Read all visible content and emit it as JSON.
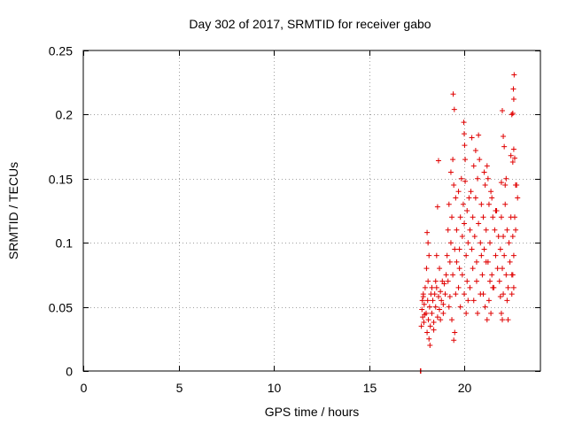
{
  "chart_data": {
    "type": "scatter",
    "title": "Day 302 of 2017, SRMTID for receiver gabo",
    "xlabel": "GPS time / hours",
    "ylabel": "SRMTID / TECUs",
    "xlim": [
      0,
      24
    ],
    "ylim": [
      0,
      0.25
    ],
    "xticks": [
      0,
      5,
      10,
      15,
      20
    ],
    "xtick_labels": [
      "0",
      "5",
      "10",
      "15",
      "20"
    ],
    "yticks": [
      0,
      0.05,
      0.1,
      0.15,
      0.2,
      0.25
    ],
    "ytick_labels": [
      "0",
      "0.05",
      "0.1",
      "0.15",
      "0.2",
      "0.25"
    ],
    "grid": true,
    "legend": "none",
    "marker": "plus",
    "color": "#e00000",
    "series": [
      {
        "name": "SRMTID",
        "points": [
          [
            17.7,
            0.0
          ],
          [
            17.72,
            0.0
          ],
          [
            17.75,
            0.035
          ],
          [
            17.78,
            0.048
          ],
          [
            17.8,
            0.055
          ],
          [
            17.82,
            0.042
          ],
          [
            17.85,
            0.06
          ],
          [
            17.88,
            0.038
          ],
          [
            17.9,
            0.052
          ],
          [
            17.95,
            0.065
          ],
          [
            18.0,
            0.045
          ],
          [
            18.05,
            0.03
          ],
          [
            18.08,
            0.055
          ],
          [
            18.1,
            0.07
          ],
          [
            18.12,
            0.04
          ],
          [
            18.15,
            0.025
          ],
          [
            18.18,
            0.05
          ],
          [
            18.2,
            0.02
          ],
          [
            18.22,
            0.035
          ],
          [
            18.25,
            0.06
          ],
          [
            18.05,
            0.108
          ],
          [
            18.1,
            0.1
          ],
          [
            18.02,
            0.08
          ],
          [
            18.15,
            0.09
          ],
          [
            17.85,
            0.058
          ],
          [
            17.92,
            0.044
          ],
          [
            18.3,
            0.045
          ],
          [
            18.35,
            0.055
          ],
          [
            18.4,
            0.038
          ],
          [
            18.45,
            0.06
          ],
          [
            18.5,
            0.05
          ],
          [
            18.55,
            0.065
          ],
          [
            18.6,
            0.042
          ],
          [
            18.65,
            0.058
          ],
          [
            18.7,
            0.048
          ],
          [
            18.75,
            0.062
          ],
          [
            18.8,
            0.055
          ],
          [
            18.85,
            0.07
          ],
          [
            18.9,
            0.052
          ],
          [
            18.95,
            0.068
          ],
          [
            19.0,
            0.06
          ],
          [
            18.5,
            0.07
          ],
          [
            18.6,
            0.128
          ],
          [
            18.65,
            0.164
          ],
          [
            18.55,
            0.09
          ],
          [
            18.7,
            0.08
          ],
          [
            18.4,
            0.032
          ],
          [
            18.75,
            0.04
          ],
          [
            18.9,
            0.045
          ],
          [
            18.3,
            0.065
          ],
          [
            19.05,
            0.075
          ],
          [
            19.1,
            0.09
          ],
          [
            19.15,
            0.11
          ],
          [
            19.2,
            0.13
          ],
          [
            19.25,
            0.085
          ],
          [
            19.3,
            0.1
          ],
          [
            19.35,
            0.12
          ],
          [
            19.4,
            0.075
          ],
          [
            19.45,
            0.145
          ],
          [
            19.5,
            0.095
          ],
          [
            19.55,
            0.06
          ],
          [
            19.6,
            0.11
          ],
          [
            19.3,
            0.155
          ],
          [
            19.4,
            0.165
          ],
          [
            19.42,
            0.216
          ],
          [
            19.48,
            0.204
          ],
          [
            19.2,
            0.05
          ],
          [
            19.35,
            0.04
          ],
          [
            19.45,
            0.024
          ],
          [
            19.5,
            0.03
          ],
          [
            19.15,
            0.07
          ],
          [
            19.25,
            0.058
          ],
          [
            19.55,
            0.135
          ],
          [
            19.6,
            0.085
          ],
          [
            19.7,
            0.14
          ],
          [
            19.75,
            0.095
          ],
          [
            19.8,
            0.12
          ],
          [
            19.85,
            0.15
          ],
          [
            19.9,
            0.105
          ],
          [
            19.95,
            0.13
          ],
          [
            20.0,
            0.115
          ],
          [
            20.05,
            0.148
          ],
          [
            20.1,
            0.09
          ],
          [
            20.15,
            0.125
          ],
          [
            20.2,
            0.1
          ],
          [
            20.25,
            0.135
          ],
          [
            19.98,
            0.194
          ],
          [
            20.0,
            0.185
          ],
          [
            20.02,
            0.176
          ],
          [
            20.05,
            0.165
          ],
          [
            19.7,
            0.065
          ],
          [
            19.8,
            0.05
          ],
          [
            19.9,
            0.075
          ],
          [
            20.0,
            0.06
          ],
          [
            20.1,
            0.045
          ],
          [
            20.15,
            0.07
          ],
          [
            19.75,
            0.08
          ],
          [
            20.2,
            0.055
          ],
          [
            20.3,
            0.11
          ],
          [
            20.35,
            0.14
          ],
          [
            20.4,
            0.095
          ],
          [
            20.45,
            0.12
          ],
          [
            20.5,
            0.16
          ],
          [
            20.55,
            0.105
          ],
          [
            20.6,
            0.135
          ],
          [
            20.65,
            0.085
          ],
          [
            20.7,
            0.15
          ],
          [
            20.75,
            0.115
          ],
          [
            20.8,
            0.165
          ],
          [
            20.85,
            0.1
          ],
          [
            20.9,
            0.13
          ],
          [
            20.95,
            0.075
          ],
          [
            20.4,
            0.182
          ],
          [
            20.6,
            0.172
          ],
          [
            20.75,
            0.184
          ],
          [
            20.3,
            0.065
          ],
          [
            20.5,
            0.055
          ],
          [
            20.7,
            0.045
          ],
          [
            20.85,
            0.06
          ],
          [
            20.45,
            0.08
          ],
          [
            20.65,
            0.07
          ],
          [
            20.9,
            0.09
          ],
          [
            21.0,
            0.12
          ],
          [
            21.05,
            0.095
          ],
          [
            21.1,
            0.145
          ],
          [
            21.15,
            0.11
          ],
          [
            21.2,
            0.16
          ],
          [
            21.25,
            0.085
          ],
          [
            21.3,
            0.13
          ],
          [
            21.35,
            0.1
          ],
          [
            21.4,
            0.14
          ],
          [
            21.45,
            0.075
          ],
          [
            21.5,
            0.12
          ],
          [
            21.55,
            0.065
          ],
          [
            21.6,
            0.11
          ],
          [
            21.65,
            0.09
          ],
          [
            21.7,
            0.125
          ],
          [
            21.75,
            0.08
          ],
          [
            21.8,
            0.105
          ],
          [
            21.85,
            0.07
          ],
          [
            21.0,
            0.06
          ],
          [
            21.1,
            0.05
          ],
          [
            21.2,
            0.04
          ],
          [
            21.3,
            0.055
          ],
          [
            21.4,
            0.045
          ],
          [
            21.5,
            0.065
          ],
          [
            21.05,
            0.155
          ],
          [
            21.25,
            0.15
          ],
          [
            21.45,
            0.135
          ],
          [
            21.65,
            0.125
          ],
          [
            21.15,
            0.085
          ],
          [
            21.35,
            0.07
          ],
          [
            21.9,
            0.095
          ],
          [
            21.95,
            0.12
          ],
          [
            22.0,
            0.08
          ],
          [
            22.05,
            0.105
          ],
          [
            22.1,
            0.09
          ],
          [
            22.15,
            0.13
          ],
          [
            22.2,
            0.075
          ],
          [
            22.25,
            0.11
          ],
          [
            22.3,
            0.065
          ],
          [
            22.35,
            0.1
          ],
          [
            22.4,
            0.085
          ],
          [
            22.45,
            0.12
          ],
          [
            21.9,
            0.058
          ],
          [
            21.95,
            0.045
          ],
          [
            22.0,
            0.04
          ],
          [
            22.05,
            0.06
          ],
          [
            21.95,
            0.147
          ],
          [
            22.05,
            0.183
          ],
          [
            22.0,
            0.203
          ],
          [
            22.1,
            0.175
          ],
          [
            22.15,
            0.145
          ],
          [
            22.2,
            0.15
          ],
          [
            22.3,
            0.04
          ],
          [
            22.25,
            0.055
          ],
          [
            22.5,
            0.075
          ],
          [
            22.55,
            0.105
          ],
          [
            22.6,
            0.09
          ],
          [
            22.65,
            0.12
          ],
          [
            22.7,
            0.11
          ],
          [
            22.75,
            0.145
          ],
          [
            22.8,
            0.135
          ],
          [
            22.5,
            0.06
          ],
          [
            22.55,
            0.075
          ],
          [
            22.6,
            0.065
          ],
          [
            22.45,
            0.168
          ],
          [
            22.55,
            0.163
          ],
          [
            22.6,
            0.173
          ],
          [
            22.5,
            0.2
          ],
          [
            22.55,
            0.201
          ],
          [
            22.6,
            0.212
          ],
          [
            22.58,
            0.22
          ],
          [
            22.62,
            0.231
          ],
          [
            22.65,
            0.166
          ],
          [
            22.7,
            0.145
          ]
        ]
      }
    ]
  }
}
